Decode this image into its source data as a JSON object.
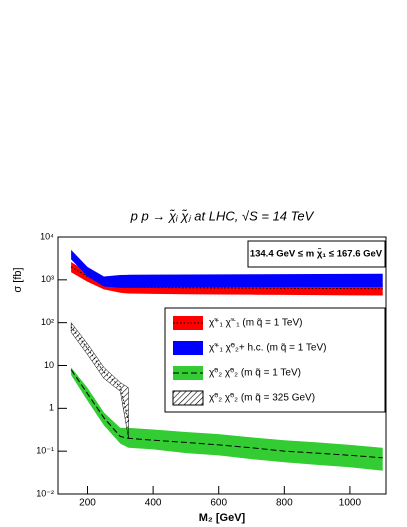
{
  "chart_data": {
    "type": "band",
    "title": "p p → χ̃ᵢ χ̃ⱼ at LHC, √S = 14 TeV",
    "annotation": "134.4 GeV ≤ m χ̃₁ ≤ 167.6 GeV",
    "xlabel": "M₂ [GeV]",
    "ylabel": "σ [fb]",
    "log_y": true,
    "x": [
      150,
      200,
      250,
      300,
      325,
      400,
      500,
      600,
      700,
      800,
      900,
      1000,
      1100
    ],
    "xlim": [
      110,
      1110
    ],
    "xticks": [
      200,
      400,
      600,
      800,
      1000
    ],
    "ylim": [
      0.01,
      10000
    ],
    "yticks": [
      {
        "value": 0.01,
        "label": "10⁻²"
      },
      {
        "value": 0.1,
        "label": "10⁻¹"
      },
      1,
      10,
      {
        "value": 100,
        "label": "10²"
      },
      {
        "value": 1000,
        "label": "10³"
      },
      {
        "value": 10000,
        "label": "10⁴"
      }
    ],
    "series": [
      {
        "name": "χ̃⁺₁ χ̃⁻₁ (m q̃ = 1 TeV)",
        "color": "#ff0000",
        "fill": "solid",
        "line_style": "dotted",
        "lower": [
          1500,
          900,
          600,
          500,
          480,
          470,
          460,
          455,
          450,
          445,
          440,
          435,
          430
        ],
        "values": [
          2000,
          1200,
          800,
          700,
          680,
          660,
          650,
          645,
          640,
          635,
          630,
          625,
          620
        ],
        "upper": [
          2600,
          1500,
          1000,
          850,
          830,
          820,
          810,
          805,
          800,
          795,
          790,
          785,
          780
        ]
      },
      {
        "name": "χ̃⁺₁ χ̃⁰₂+ h.c. (m q̃ = 1 TeV)",
        "color": "#0000ff",
        "fill": "solid",
        "line_style": "none",
        "lower": [
          3000,
          1200,
          700,
          650,
          650,
          660,
          665,
          670,
          675,
          680,
          680,
          680,
          680
        ],
        "values": [
          4000,
          1600,
          900,
          950,
          960,
          970,
          975,
          980,
          985,
          990,
          990,
          990,
          990
        ],
        "upper": [
          5000,
          2000,
          1200,
          1300,
          1310,
          1320,
          1330,
          1340,
          1350,
          1360,
          1370,
          1380,
          1390
        ]
      },
      {
        "name": "χ̃⁰₂ χ̃⁰₂ (m q̃ = 1 TeV)",
        "color": "#33cc33",
        "fill": "solid",
        "line_style": "dashed",
        "lower": [
          6,
          1.5,
          0.4,
          0.15,
          0.12,
          0.11,
          0.09,
          0.08,
          0.065,
          0.055,
          0.048,
          0.042,
          0.035
        ],
        "values": [
          8,
          2.2,
          0.6,
          0.22,
          0.2,
          0.18,
          0.16,
          0.14,
          0.12,
          0.1,
          0.09,
          0.08,
          0.07
        ],
        "upper": [
          9,
          3,
          0.8,
          0.35,
          0.35,
          0.32,
          0.28,
          0.25,
          0.21,
          0.18,
          0.16,
          0.14,
          0.12
        ]
      },
      {
        "name": "χ̃⁰₂ χ̃⁰₂ (m q̃ = 325 GeV)",
        "color": "#000000",
        "fill": "hatch",
        "line_style": "dotted",
        "lower": [
          60,
          18,
          5,
          2.5,
          0.2,
          null,
          null,
          null,
          null,
          null,
          null,
          null,
          null
        ],
        "values": [
          80,
          25,
          7,
          3.2,
          0.5,
          null,
          null,
          null,
          null,
          null,
          null,
          null,
          null
        ],
        "upper": [
          100,
          32,
          9,
          4,
          3,
          null,
          null,
          null,
          null,
          null,
          null,
          null,
          null
        ]
      }
    ]
  }
}
